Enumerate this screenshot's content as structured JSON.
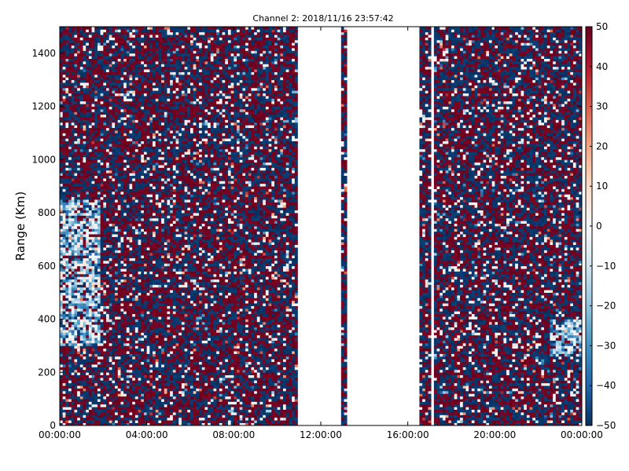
{
  "chart_data": {
    "type": "heatmap",
    "title": "Channel 2: 2018/11/16 23:57:42",
    "xlabel": "",
    "ylabel": "Range (Km)",
    "x_ticks": [
      "00:00:00",
      "04:00:00",
      "08:00:00",
      "12:00:00",
      "16:00:00",
      "20:00:00",
      "00:00:00"
    ],
    "x_range_hours": [
      0,
      24
    ],
    "y_ticks": [
      0,
      200,
      400,
      600,
      800,
      1000,
      1200,
      1400
    ],
    "ylim": [
      0,
      1500
    ],
    "colorbar": {
      "ticks": [
        50,
        40,
        30,
        20,
        10,
        0,
        -10,
        -20,
        -30,
        -40,
        -50
      ],
      "range": [
        -50,
        50
      ],
      "colormap": "RdBu_r",
      "low_color": "#053061",
      "mid_color": "#f7f7f7",
      "high_color": "#67001f"
    },
    "data_gaps_hours": [
      [
        11.0,
        12.95
      ],
      [
        13.15,
        16.6
      ],
      [
        17.05,
        17.2
      ]
    ],
    "features": [
      {
        "label": "",
        "hours": [
          0.0,
          1.8
        ],
        "range_km": [
          300,
          850
        ],
        "value_approx": -15
      },
      {
        "label": "",
        "hours": [
          22.5,
          24.0
        ],
        "range_km": [
          260,
          400
        ],
        "value_approx": -20
      }
    ],
    "grid": false,
    "legend": "colorbar-right"
  }
}
